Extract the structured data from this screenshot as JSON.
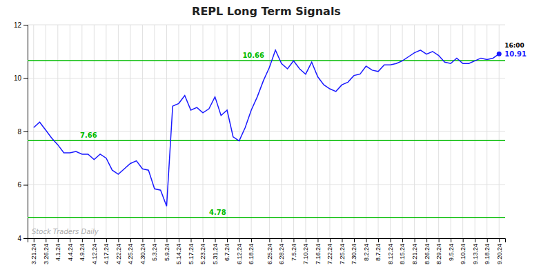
{
  "chart_data": {
    "type": "line",
    "title": "REPL Long Term Signals",
    "categories": [
      "3.21.24",
      null,
      "3.26.24",
      null,
      "4.1.24",
      null,
      "4.4.24",
      null,
      "4.9.24",
      null,
      "4.12.24",
      null,
      "4.17.24",
      null,
      "4.22.24",
      null,
      "4.25.24",
      null,
      "4.30.24",
      null,
      "5.3.24",
      null,
      "5.9.24",
      null,
      "5.14.24",
      null,
      "5.17.24",
      null,
      "5.23.24",
      null,
      "5.31.24",
      null,
      "6.7.24",
      null,
      "6.12.24",
      null,
      "6.18.24",
      null,
      null,
      "6.25.24",
      null,
      "6.28.24",
      null,
      "7.5.24",
      null,
      "7.10.24",
      null,
      "7.16.24",
      null,
      "7.22.24",
      null,
      "7.25.24",
      null,
      "7.30.24",
      null,
      "8.2.24",
      null,
      "8.7.24",
      null,
      "8.12.24",
      null,
      "8.15.24",
      null,
      "8.21.24",
      null,
      "8.26.24",
      null,
      "8.29.24",
      null,
      "9.5.24",
      null,
      "9.10.24",
      null,
      "9.13.24",
      null,
      "9.18.24",
      null,
      "9.20.24"
    ],
    "values": [
      8.15,
      8.35,
      8.05,
      7.75,
      7.5,
      7.2,
      7.2,
      7.25,
      7.15,
      7.15,
      6.95,
      7.15,
      7.0,
      6.55,
      6.4,
      6.6,
      6.8,
      6.9,
      6.6,
      6.55,
      5.85,
      5.8,
      5.2,
      8.95,
      9.05,
      9.35,
      8.8,
      8.9,
      8.7,
      8.85,
      9.3,
      8.6,
      8.8,
      7.8,
      7.65,
      8.15,
      8.8,
      9.3,
      9.9,
      10.4,
      11.05,
      10.55,
      10.35,
      10.65,
      10.35,
      10.15,
      10.6,
      10.05,
      9.75,
      9.6,
      9.5,
      9.75,
      9.85,
      10.1,
      10.15,
      10.45,
      10.3,
      10.25,
      10.5,
      10.5,
      10.55,
      10.65,
      10.8,
      10.95,
      11.05,
      10.9,
      11.0,
      10.85,
      10.6,
      10.55,
      10.75,
      10.55,
      10.55,
      10.65,
      10.75,
      10.7,
      10.75,
      10.91
    ],
    "color": "#1a1aff",
    "ylim": [
      4.0,
      12.0
    ],
    "yticks": [
      4,
      6,
      8,
      10,
      12
    ],
    "grid": true,
    "reference_lines": {
      "values": [
        4.78,
        7.66,
        10.66
      ],
      "color": "#00bb00"
    },
    "annotations": [
      "Stock Traders Daily",
      "16:00"
    ]
  }
}
